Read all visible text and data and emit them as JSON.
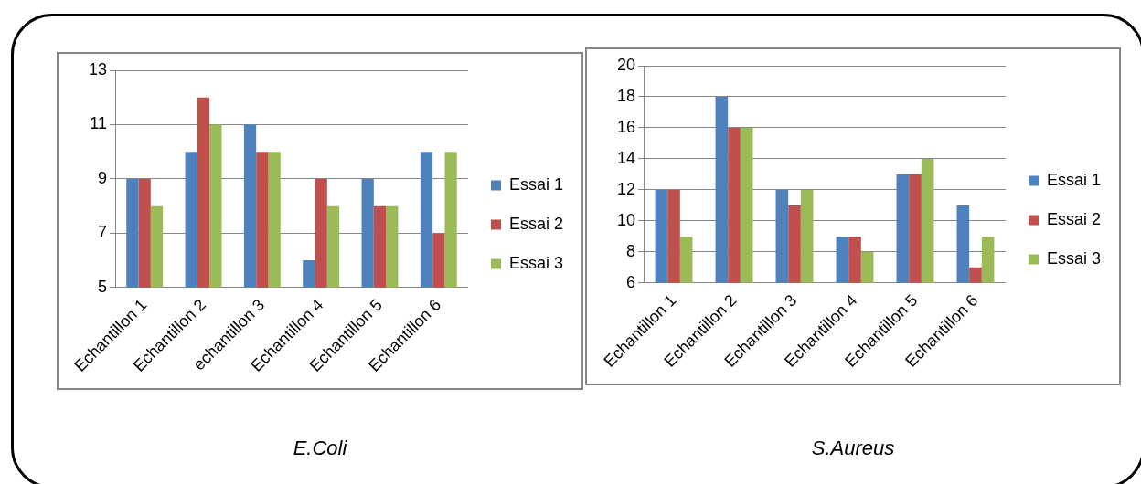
{
  "chart_data": [
    {
      "type": "bar",
      "title": "E.Coli",
      "categories": [
        "Echantillon 1",
        "Echantillon 2",
        "echantillon 3",
        "Echantillon 4",
        "Echantillon 5",
        "Echantillon 6"
      ],
      "series": [
        {
          "name": "Essai 1",
          "color": "#4f81bd",
          "values": [
            9,
            10,
            11,
            6,
            9,
            10
          ]
        },
        {
          "name": "Essai 2",
          "color": "#c0504d",
          "values": [
            9,
            12,
            10,
            9,
            8,
            7
          ]
        },
        {
          "name": "Essai 3",
          "color": "#9bbb59",
          "values": [
            8,
            11,
            10,
            8,
            8,
            10
          ]
        }
      ],
      "ylim": [
        5,
        13
      ],
      "yticks": [
        5,
        7,
        9,
        11,
        13
      ],
      "grid": "y",
      "legend": "right"
    },
    {
      "type": "bar",
      "title": "S.Aureus",
      "categories": [
        "Echantillon 1",
        "Echantillon 2",
        "Echantillon 3",
        "Echantillon 4",
        "Echantillon 5",
        "Echantillon 6"
      ],
      "series": [
        {
          "name": "Essai 1",
          "color": "#4f81bd",
          "values": [
            12,
            18,
            12,
            9,
            13,
            11
          ]
        },
        {
          "name": "Essai 2",
          "color": "#c0504d",
          "values": [
            12,
            16,
            11,
            9,
            13,
            7
          ]
        },
        {
          "name": "Essai 3",
          "color": "#9bbb59",
          "values": [
            9,
            16,
            12,
            8,
            14,
            9
          ]
        }
      ],
      "ylim": [
        6,
        20
      ],
      "yticks": [
        6,
        8,
        10,
        12,
        14,
        16,
        18,
        20
      ],
      "grid": "y",
      "legend": "right"
    }
  ]
}
